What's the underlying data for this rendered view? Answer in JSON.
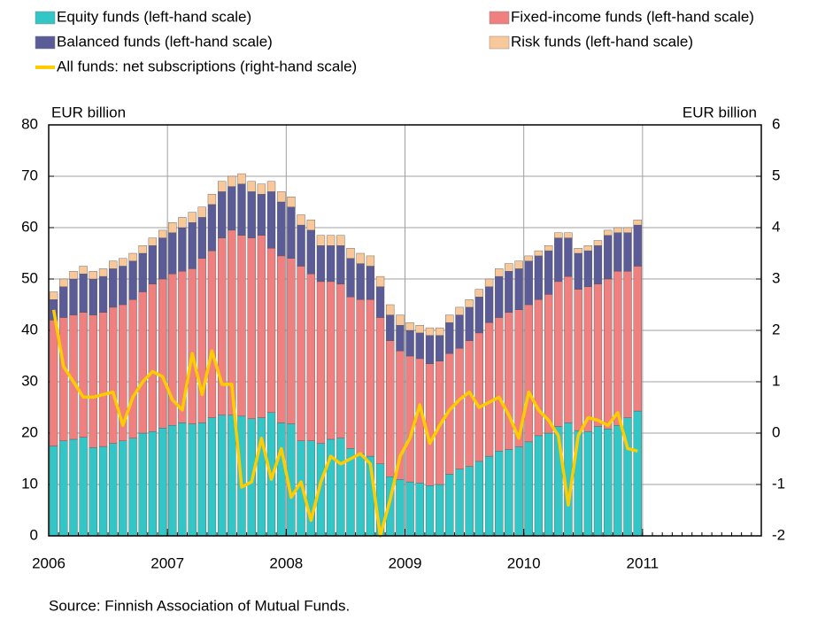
{
  "chart_data": {
    "type": "bar",
    "stacked": true,
    "xlim": [
      2006,
      2012
    ],
    "xticks": [
      2006,
      2007,
      2008,
      2009,
      2010,
      2011
    ],
    "x": [
      2006,
      2006.083,
      2006.167,
      2006.25,
      2006.333,
      2006.417,
      2006.5,
      2006.583,
      2006.667,
      2006.75,
      2006.833,
      2006.917,
      2007,
      2007.083,
      2007.167,
      2007.25,
      2007.333,
      2007.417,
      2007.5,
      2007.583,
      2007.667,
      2007.75,
      2007.833,
      2007.917,
      2008,
      2008.083,
      2008.167,
      2008.25,
      2008.333,
      2008.417,
      2008.5,
      2008.583,
      2008.667,
      2008.75,
      2008.833,
      2008.917,
      2009,
      2009.083,
      2009.167,
      2009.25,
      2009.333,
      2009.417,
      2009.5,
      2009.583,
      2009.667,
      2009.75,
      2009.833,
      2009.917,
      2010,
      2010.083,
      2010.167,
      2010.25,
      2010.333,
      2010.417,
      2010.5,
      2010.583,
      2010.667,
      2010.75,
      2010.833,
      2010.917
    ],
    "ylim": [
      0,
      80
    ],
    "yticks": [
      0,
      10,
      20,
      30,
      40,
      50,
      60,
      70,
      80
    ],
    "y2lim": [
      -2,
      6
    ],
    "y2ticks": [
      -2,
      -1,
      0,
      1,
      2,
      3,
      4,
      5,
      6
    ],
    "ylabel": "EUR billion",
    "y2label": "EUR billion",
    "grid": true,
    "source": "Source: Finnish Association of Mutual Funds.",
    "series": [
      {
        "name": "Equity funds (left-hand scale)",
        "color": "#33c6c6",
        "values": [
          17.5,
          18.5,
          18.8,
          19.2,
          17.2,
          17.4,
          18,
          18.5,
          19,
          20,
          20.3,
          21,
          21.5,
          22,
          21.8,
          22,
          23,
          23.5,
          23.5,
          23.3,
          22.8,
          23,
          24,
          22,
          21.8,
          18.5,
          18.5,
          18,
          18.8,
          19,
          17,
          16,
          15.5,
          14,
          11.5,
          11,
          10.5,
          10.3,
          9.8,
          10,
          12,
          13,
          13.5,
          14.5,
          15.5,
          16.5,
          16.8,
          17.3,
          18.3,
          19.5,
          20,
          21.3,
          22,
          20.5,
          20.3,
          21.3,
          20.8,
          21.5,
          23,
          24.3
        ]
      },
      {
        "name": "Fixed-income funds (left-hand scale)",
        "color": "#f08080",
        "values": [
          24.5,
          24,
          24.2,
          24.3,
          25.8,
          26.1,
          26.5,
          26.5,
          27,
          27.5,
          28.7,
          29,
          29.5,
          29.5,
          30.2,
          32,
          32.5,
          34.5,
          36,
          35.2,
          35.2,
          35.5,
          32,
          32.5,
          32.2,
          34,
          32.5,
          31.5,
          30.7,
          30,
          29.5,
          30,
          30.5,
          28.5,
          26.5,
          25,
          24.5,
          24.2,
          23.7,
          24,
          23.5,
          23.5,
          24.5,
          25,
          26,
          26,
          26.7,
          26.7,
          26.7,
          26.5,
          27,
          28.2,
          28.5,
          27.5,
          28.2,
          27.7,
          29.2,
          30,
          28.5,
          28.2
        ]
      },
      {
        "name": "Balanced funds (left-hand scale)",
        "color": "#5b5b98",
        "values": [
          4,
          6,
          7,
          7.5,
          7,
          7,
          7.5,
          7.5,
          7.5,
          7.5,
          7.5,
          8,
          8,
          8.5,
          9,
          8,
          9,
          9,
          8.5,
          10,
          9,
          8,
          11,
          10.5,
          10,
          8,
          8.5,
          7,
          7,
          7.5,
          7.5,
          7,
          6.5,
          6,
          5,
          5,
          5,
          5,
          5.5,
          5,
          6,
          6.5,
          6.5,
          7,
          7,
          8,
          8,
          8,
          8.5,
          8.5,
          8.5,
          8.5,
          7.5,
          7,
          7,
          7.5,
          8.5,
          7.5,
          7.5,
          8
        ]
      },
      {
        "name": "Risk funds (left-hand scale)",
        "color": "#f9c89a",
        "values": [
          1.5,
          1.5,
          1.5,
          1.5,
          1.5,
          1.5,
          1.5,
          1.5,
          1.5,
          1.5,
          1.5,
          1.5,
          2,
          2,
          2,
          2,
          2,
          2,
          2,
          2,
          2,
          2,
          2,
          2,
          2,
          2,
          2,
          2,
          2,
          2,
          2,
          2,
          2,
          2,
          2,
          2,
          1.5,
          1.5,
          1.5,
          1.5,
          1.5,
          1.5,
          1.5,
          1.5,
          1.5,
          1.5,
          1.5,
          1.5,
          1,
          1,
          1,
          1,
          1,
          1,
          1,
          1,
          1,
          1,
          1,
          1
        ]
      },
      {
        "name": "All funds: net subscriptions (right-hand scale)",
        "color": "#ffcc00",
        "type": "line",
        "axis": "y2",
        "values": [
          2.4,
          1.3,
          1.0,
          0.7,
          0.7,
          0.75,
          0.8,
          0.15,
          0.7,
          1.0,
          1.2,
          1.1,
          0.65,
          0.45,
          1.55,
          0.75,
          1.6,
          0.95,
          0.95,
          -1.05,
          -0.95,
          -0.1,
          -0.9,
          -0.3,
          -1.25,
          -0.95,
          -1.7,
          -0.95,
          -0.45,
          -0.6,
          -0.5,
          -0.4,
          -0.6,
          -2.0,
          -1.3,
          -0.45,
          -0.1,
          0.55,
          -0.2,
          0.15,
          0.45,
          0.65,
          0.8,
          0.5,
          0.6,
          0.7,
          0.35,
          -0.1,
          0.8,
          0.45,
          0.25,
          -0.05,
          -1.4,
          -0.05,
          0.3,
          0.25,
          0.15,
          0.4,
          -0.3,
          -0.35
        ]
      }
    ]
  }
}
